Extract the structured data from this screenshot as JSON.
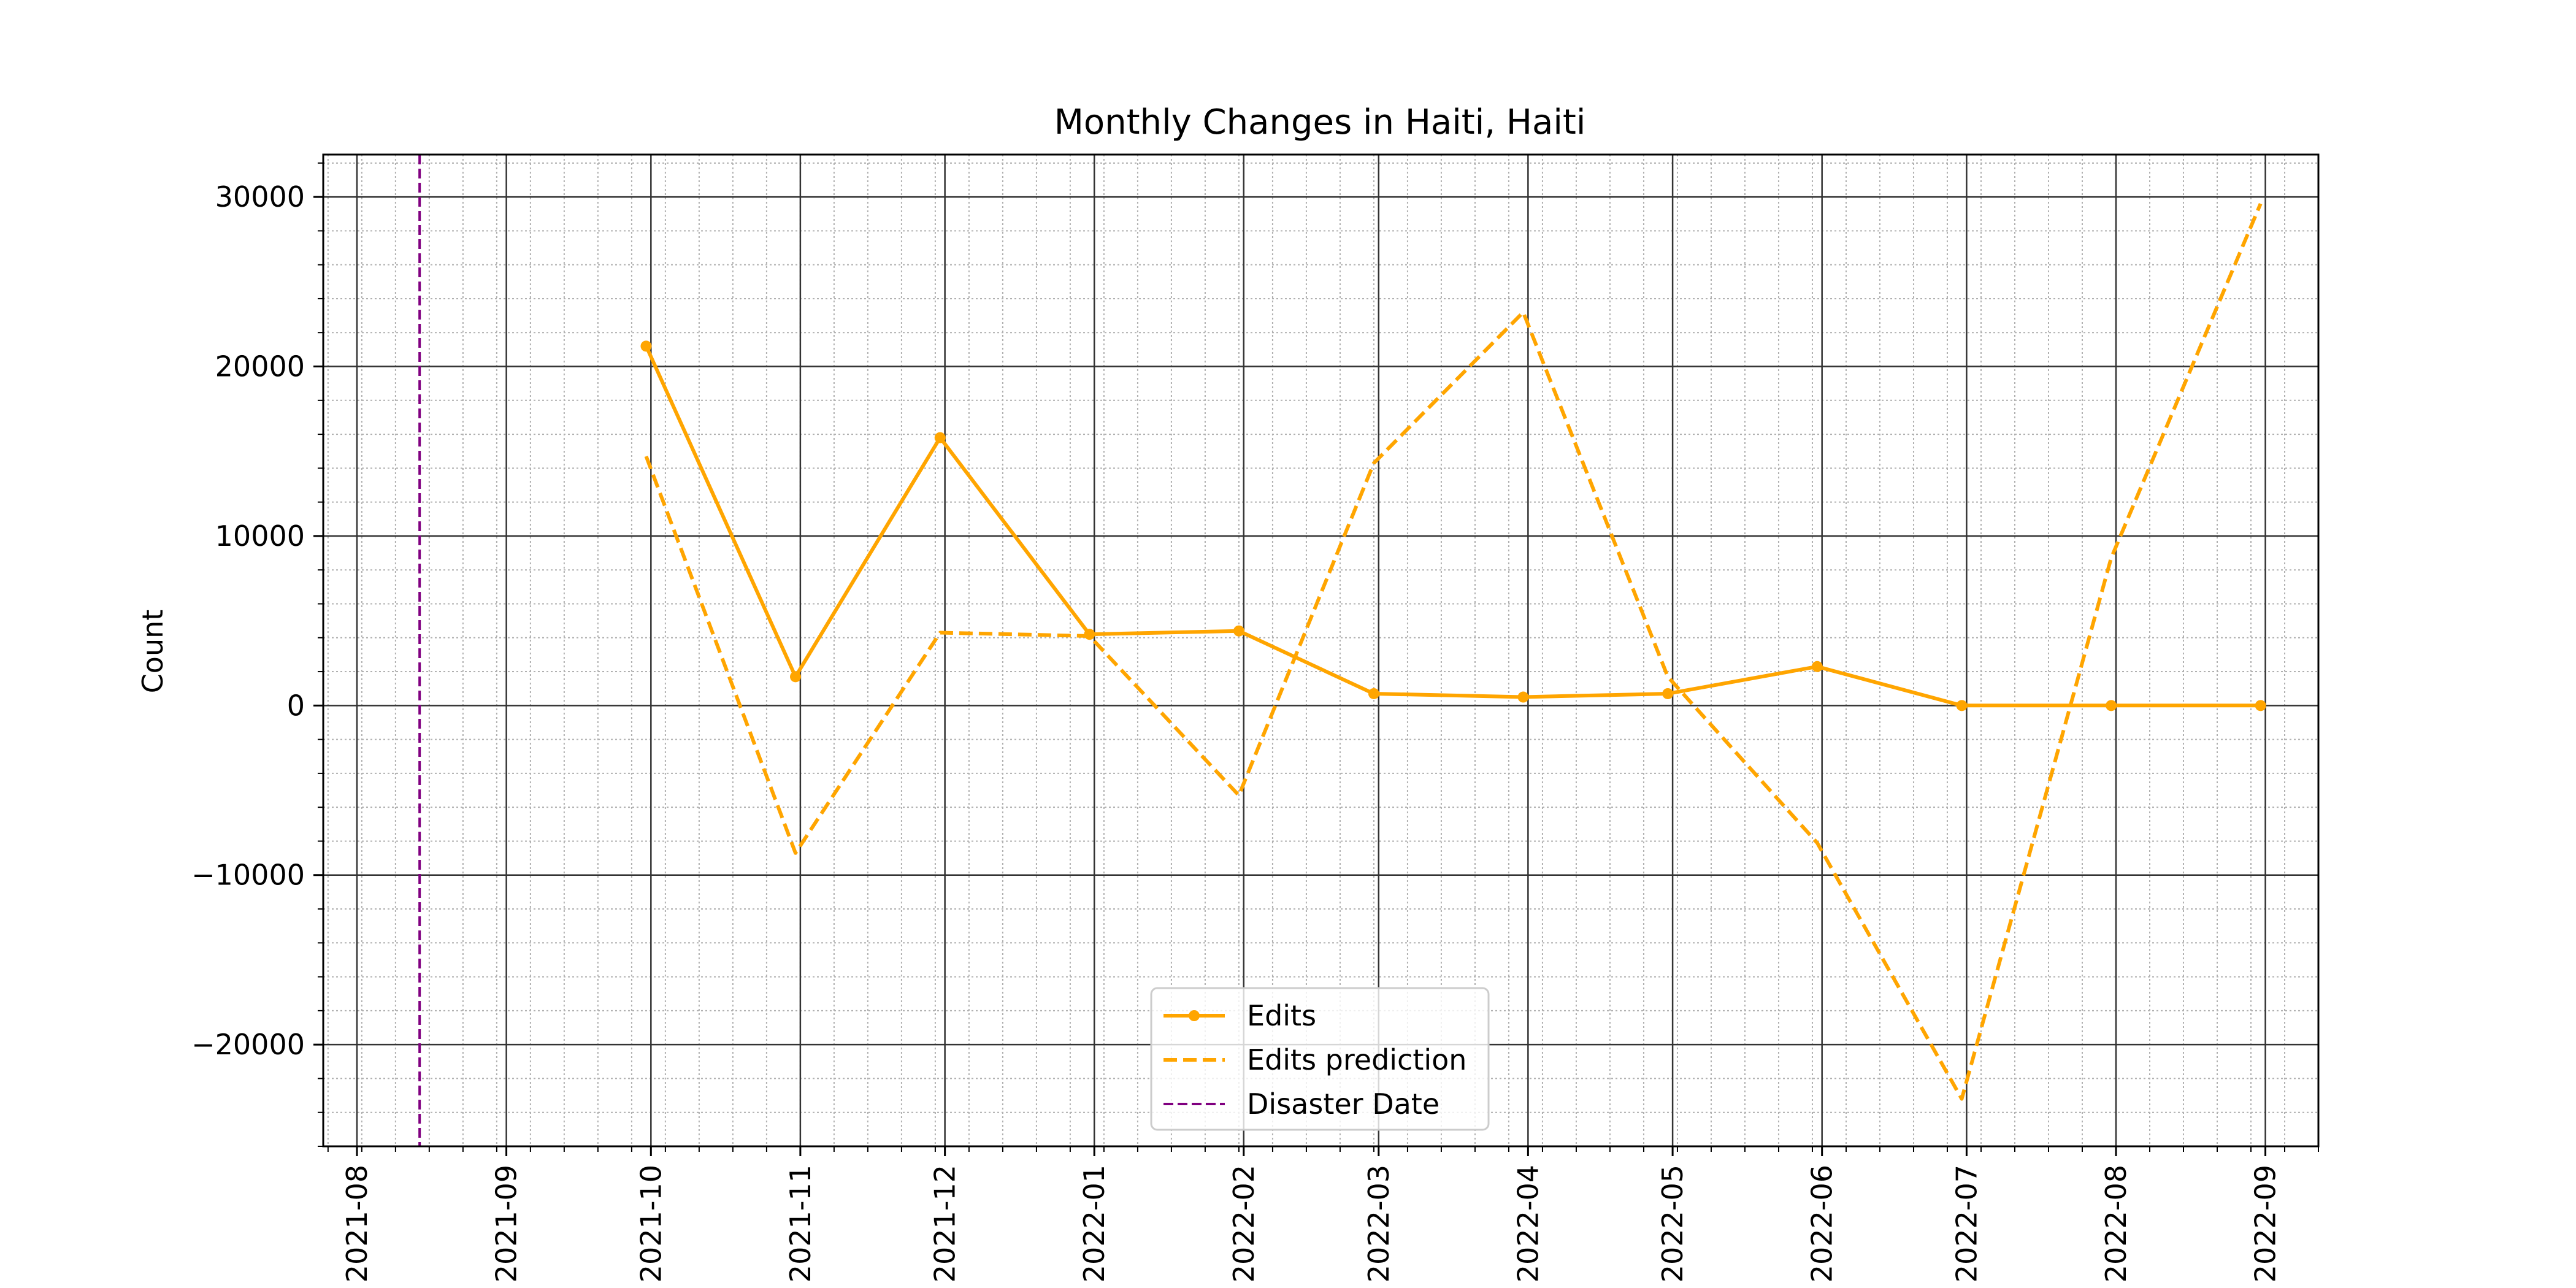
{
  "chart_data": {
    "type": "line",
    "title": "Monthly Changes in Haiti, Haiti",
    "xlabel": "",
    "ylabel": "Count",
    "x_axis": {
      "type": "date",
      "min": "2021-07-25",
      "max": "2022-09-12",
      "ticks": [
        "2021-08",
        "2021-09",
        "2021-10",
        "2021-11",
        "2021-12",
        "2022-01",
        "2022-02",
        "2022-03",
        "2022-04",
        "2022-05",
        "2022-06",
        "2022-07",
        "2022-08",
        "2022-09"
      ]
    },
    "y_axis": {
      "min": -26000,
      "max": 32500,
      "ticks": [
        -20000,
        -10000,
        0,
        10000,
        20000,
        30000
      ],
      "tick_labels": [
        "−20000",
        "−10000",
        "0",
        "10000",
        "20000",
        "30000"
      ]
    },
    "grid": true,
    "minor_grid": true,
    "legend_position": "lower-center",
    "x": [
      "2021-09-30",
      "2021-10-31",
      "2021-11-30",
      "2021-12-31",
      "2022-01-31",
      "2022-02-28",
      "2022-03-31",
      "2022-04-30",
      "2022-05-31",
      "2022-06-30",
      "2022-07-31",
      "2022-08-31"
    ],
    "series": [
      {
        "name": "Edits",
        "values": [
          21200,
          1700,
          15800,
          4200,
          4400,
          700,
          500,
          700,
          2300,
          0,
          0,
          0
        ],
        "color": "#ffa500",
        "style": "solid",
        "marker": "circle"
      },
      {
        "name": "Edits prediction",
        "values": [
          14700,
          -8700,
          4300,
          4100,
          -5300,
          14300,
          23200,
          1700,
          -8100,
          -23200,
          8700,
          29600
        ],
        "color": "#ffa500",
        "style": "dashed",
        "marker": "none"
      }
    ],
    "vlines": [
      {
        "name": "Disaster Date",
        "x": "2021-08-14",
        "color": "#800080",
        "style": "dashed"
      }
    ]
  }
}
